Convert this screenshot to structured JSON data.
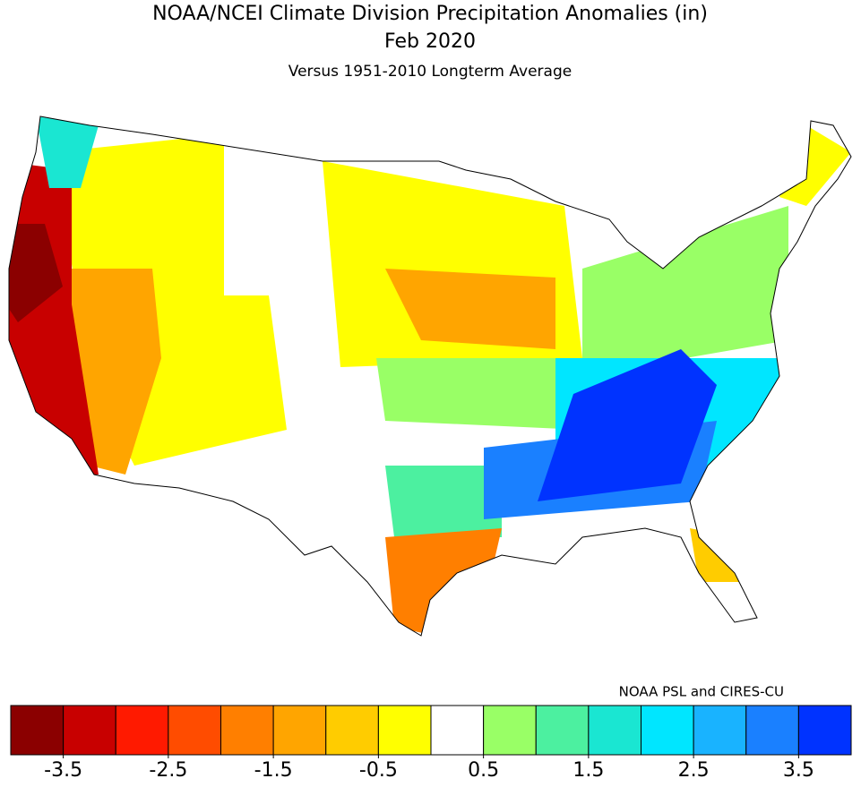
{
  "title": "NOAA/NCEI Climate Division Precipitation Anomalies (in)",
  "subtitle": "Feb 2020",
  "description": "Versus 1951-2010 Longterm Average",
  "credit": "NOAA PSL and CIRES-CU",
  "colorbar": {
    "colors": [
      "#8b0000",
      "#c80000",
      "#ff1a00",
      "#ff4c00",
      "#ff7f00",
      "#ffa500",
      "#ffcc00",
      "#ffff00",
      "#ffffff",
      "#99ff66",
      "#4cf0a0",
      "#1ae6d2",
      "#00e6ff",
      "#19b3ff",
      "#1a80ff",
      "#0033ff"
    ],
    "lim": [
      -4,
      4
    ],
    "ticks": [
      -3.5,
      -2.5,
      -1.5,
      -0.5,
      0.5,
      1.5,
      2.5,
      3.5
    ]
  }
}
